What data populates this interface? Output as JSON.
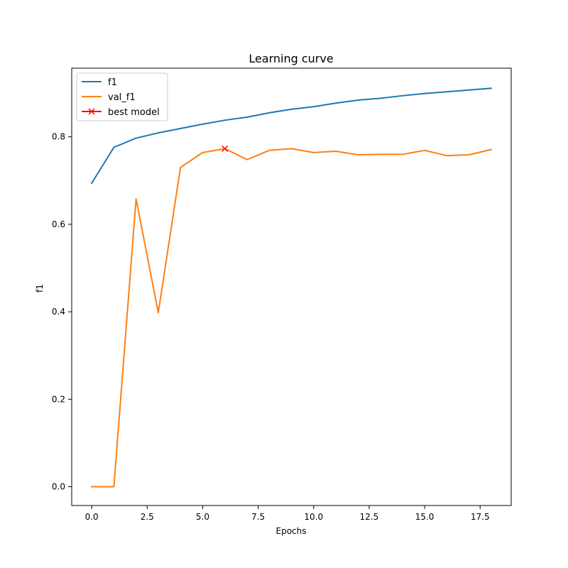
{
  "chart_data": {
    "type": "line",
    "title": "Learning curve",
    "xlabel": "Epochs",
    "ylabel": "f1",
    "xlim": [
      -0.9,
      18.9
    ],
    "ylim": [
      -0.043,
      0.957
    ],
    "xticks": [
      0.0,
      2.5,
      5.0,
      7.5,
      10.0,
      12.5,
      15.0,
      17.5
    ],
    "xtick_labels": [
      "0.0",
      "2.5",
      "5.0",
      "7.5",
      "10.0",
      "12.5",
      "15.0",
      "17.5"
    ],
    "yticks": [
      0.0,
      0.2,
      0.4,
      0.6,
      0.8
    ],
    "ytick_labels": [
      "0.0",
      "0.2",
      "0.4",
      "0.6",
      "0.8"
    ],
    "grid": false,
    "legend_position": "top-left",
    "series": [
      {
        "name": "f1",
        "color": "#1f77b4",
        "x": [
          0,
          1,
          2,
          3,
          4,
          5,
          6,
          7,
          8,
          9,
          10,
          11,
          12,
          13,
          14,
          15,
          16,
          17,
          18
        ],
        "y": [
          0.694,
          0.776,
          0.797,
          0.809,
          0.819,
          0.829,
          0.838,
          0.845,
          0.855,
          0.863,
          0.869,
          0.877,
          0.884,
          0.888,
          0.894,
          0.899,
          0.903,
          0.907,
          0.911
        ]
      },
      {
        "name": "val_f1",
        "color": "#ff7f0e",
        "x": [
          0,
          1,
          2,
          3,
          4,
          5,
          6,
          7,
          8,
          9,
          10,
          11,
          12,
          13,
          14,
          15,
          16,
          17,
          18
        ],
        "y": [
          0.0,
          0.0,
          0.658,
          0.398,
          0.73,
          0.764,
          0.773,
          0.748,
          0.769,
          0.773,
          0.764,
          0.767,
          0.759,
          0.76,
          0.76,
          0.769,
          0.757,
          0.759,
          0.771
        ]
      }
    ],
    "markers": [
      {
        "name": "best model",
        "color": "#ff0000",
        "symbol": "x",
        "x": 6,
        "y": 0.773
      }
    ]
  }
}
